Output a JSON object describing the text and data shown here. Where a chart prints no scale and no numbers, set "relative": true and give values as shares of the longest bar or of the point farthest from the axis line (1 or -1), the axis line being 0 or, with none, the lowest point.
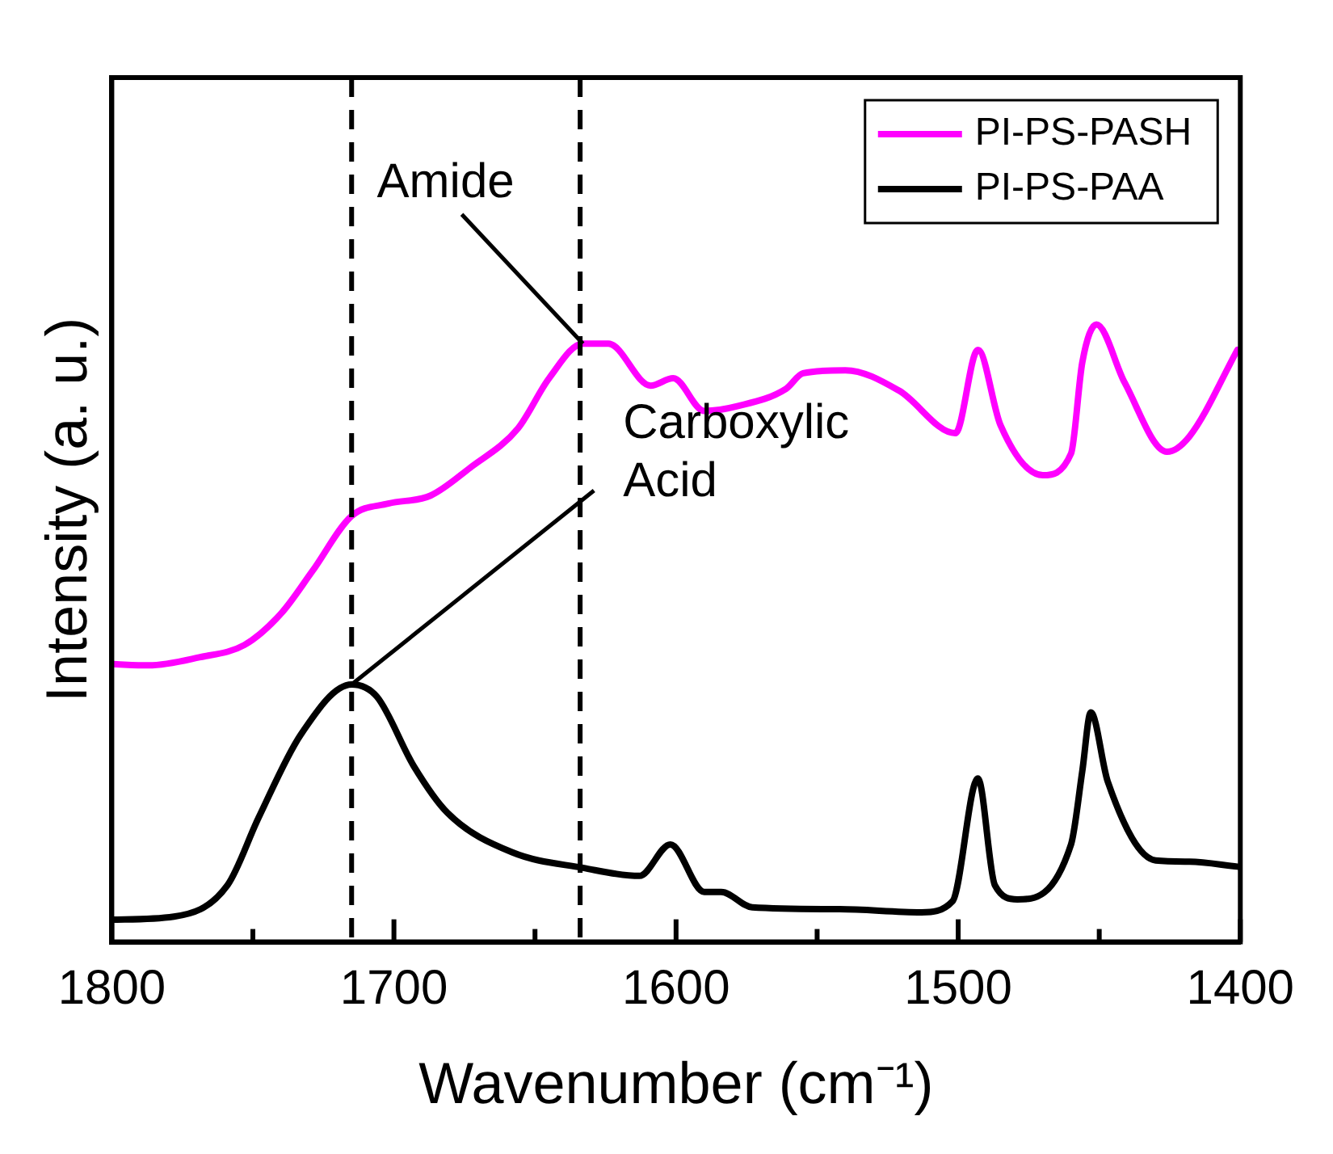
{
  "chart_data": {
    "type": "line",
    "xlabel": "Wavenumber (cm⁻¹)",
    "ylabel": "Intensity (a. u.)",
    "relative": true,
    "xlim": [
      1800,
      1400
    ],
    "xticks": [
      1800,
      {
        "value": 1750,
        "label": null
      },
      1700,
      {
        "value": 1650,
        "label": null
      },
      1600,
      {
        "value": 1550,
        "label": null
      },
      1500,
      {
        "value": 1450,
        "label": null
      },
      1400
    ],
    "grid": false,
    "legend": "top right",
    "marker": "none",
    "line_style": "solid",
    "ref_lines": [
      {
        "axis": "x",
        "value": 1715,
        "label": null,
        "color": "#000000",
        "line_style": "dashed"
      },
      {
        "axis": "x",
        "value": 1634,
        "label": null,
        "color": "#000000",
        "line_style": "dashed"
      }
    ],
    "annotations": [
      {
        "text": "Amide",
        "x": 1633,
        "y": 0.969
      },
      {
        "text": "Carboxylic Acid",
        "x": 1715,
        "y": 0.417
      }
    ],
    "series": [
      {
        "name": "PI-PS-PASH",
        "color": "#ff00ff",
        "x": [
          1800,
          1787,
          1769,
          1753,
          1740,
          1729,
          1715,
          1702,
          1687,
          1673,
          1656,
          1645,
          1633,
          1624,
          1609,
          1601,
          1590,
          1578,
          1561,
          1555,
          1540,
          1521,
          1501,
          1493,
          1485,
          1470,
          1460,
          1456,
          1451,
          1441,
          1426,
          1418,
          1401
        ],
        "values": [
          0.45,
          0.448,
          0.461,
          0.481,
          0.532,
          0.6,
          0.69,
          0.71,
          0.723,
          0.768,
          0.832,
          0.913,
          0.969,
          0.969,
          0.901,
          0.913,
          0.86,
          0.868,
          0.896,
          0.921,
          0.926,
          0.893,
          0.824,
          0.959,
          0.837,
          0.756,
          0.791,
          0.939,
          1.0,
          0.906,
          0.794,
          0.819,
          0.959
        ]
      },
      {
        "name": "PI-PS-PAA",
        "color": "#000000",
        "x": [
          1800,
          1778,
          1759,
          1748,
          1733,
          1715,
          1706,
          1693,
          1681,
          1658,
          1633,
          1613,
          1602,
          1590,
          1584,
          1573,
          1542,
          1513,
          1502,
          1493,
          1487,
          1479,
          1460,
          1456,
          1453,
          1447,
          1430,
          1418,
          1401
        ],
        "values": [
          0.036,
          0.041,
          0.092,
          0.201,
          0.336,
          0.417,
          0.397,
          0.285,
          0.209,
          0.145,
          0.12,
          0.107,
          0.158,
          0.081,
          0.081,
          0.056,
          0.053,
          0.048,
          0.066,
          0.265,
          0.092,
          0.069,
          0.158,
          0.277,
          0.372,
          0.26,
          0.132,
          0.13,
          0.122
        ]
      }
    ]
  }
}
